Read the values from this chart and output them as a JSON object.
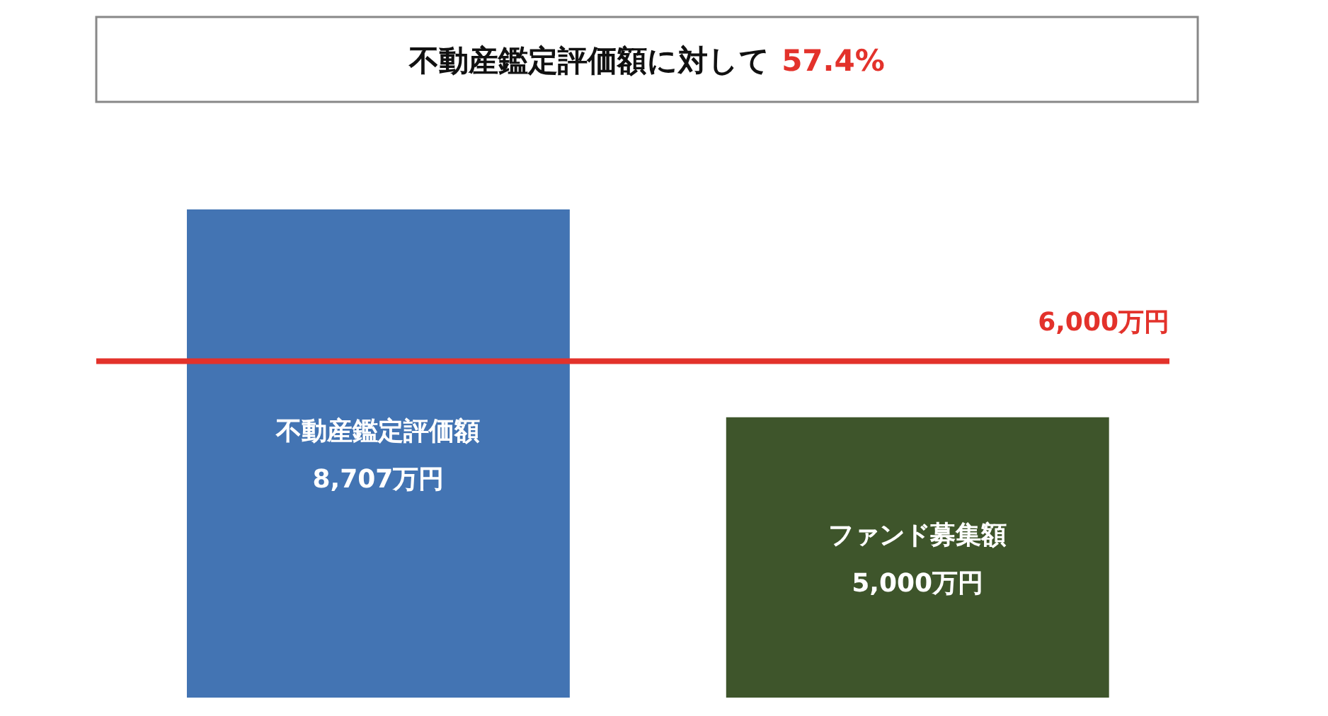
{
  "chart_data": {
    "type": "bar",
    "title": "不動産鑑定評価額に対して",
    "annotations": [
      "57.4%"
    ],
    "categories": [
      "不動産鑑定評価額",
      "ファンド募集額"
    ],
    "values": [
      8707,
      5000
    ],
    "value_labels": [
      "8,707万円",
      "5,000万円"
    ],
    "colors": [
      "#4374b3",
      "#3e552b"
    ],
    "ref_lines": [
      {
        "axis": "y",
        "value": 6000,
        "label": "6,000万円",
        "color": "#e3322b"
      }
    ]
  }
}
